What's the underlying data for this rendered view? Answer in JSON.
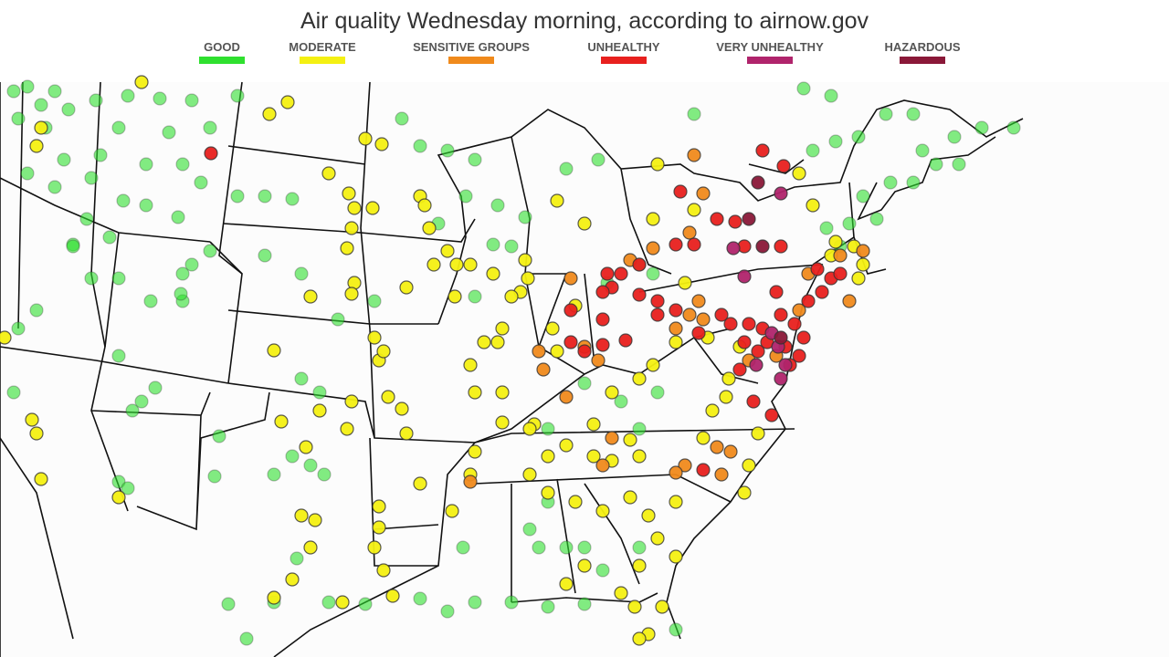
{
  "title": "Air quality Wednesday morning, according to airnow.gov",
  "legend": [
    {
      "label": "GOOD",
      "color": "#2fe02f"
    },
    {
      "label": "MODERATE",
      "color": "#f4f012"
    },
    {
      "label": "SENSITIVE GROUPS",
      "color": "#f08a1c"
    },
    {
      "label": "UNHEALTHY",
      "color": "#e8201e"
    },
    {
      "label": "VERY UNHEALTHY",
      "color": "#b0246c"
    },
    {
      "label": "HAZARDOUS",
      "color": "#8a1838"
    }
  ]
}
